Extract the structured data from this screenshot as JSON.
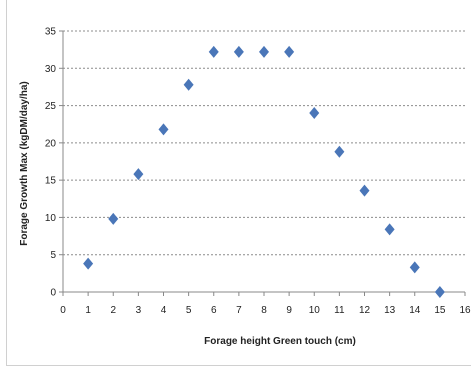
{
  "chart_data": {
    "type": "scatter",
    "title": "",
    "xlabel": "Forage height Green touch (cm)",
    "ylabel": "Forage Growth Max (kgDM/day/ha)",
    "xlim": [
      0,
      16
    ],
    "ylim": [
      0,
      35
    ],
    "xticks": [
      0,
      1,
      2,
      3,
      4,
      5,
      6,
      7,
      8,
      9,
      10,
      11,
      12,
      13,
      14,
      15,
      16
    ],
    "yticks": [
      0,
      5,
      10,
      15,
      20,
      25,
      30,
      35
    ],
    "grid": "horizontal-dashed",
    "legend": "none",
    "marker": "diamond",
    "marker_color": "#4a76b8",
    "series": [
      {
        "x": [
          1,
          2,
          3,
          4,
          5,
          6,
          7,
          8,
          9,
          10,
          11,
          12,
          13,
          14,
          15
        ],
        "y": [
          3.8,
          9.8,
          15.8,
          21.8,
          27.8,
          32.2,
          32.2,
          32.2,
          32.2,
          24.0,
          18.8,
          13.6,
          8.4,
          3.3,
          0
        ]
      }
    ]
  }
}
